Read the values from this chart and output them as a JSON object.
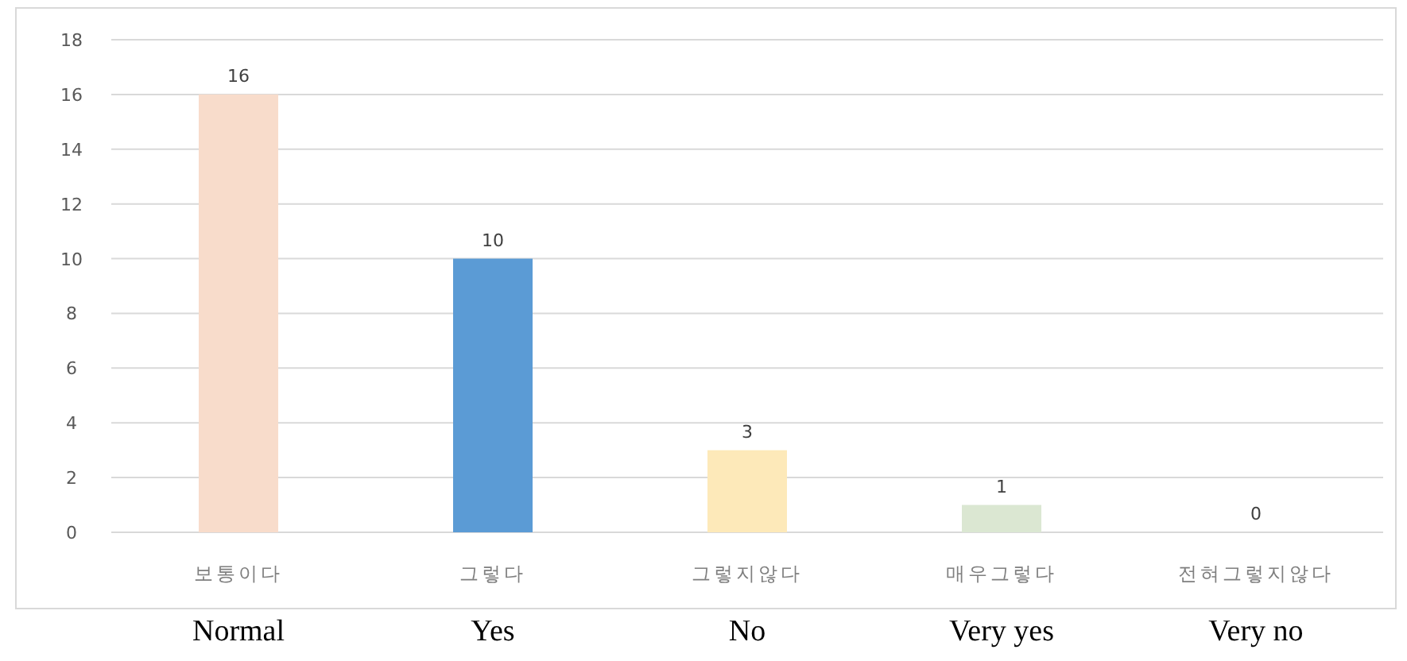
{
  "chart_data": {
    "type": "bar",
    "categories": [
      "보통이다\nNormal",
      "그렇다\nYes",
      "그렇지않다\nNo",
      "매우그렇다\nVery yes",
      "전혀그렇지않다\nVery no"
    ],
    "values": [
      16,
      10,
      3,
      1,
      0
    ],
    "colors": [
      "#f8dccb",
      "#5b9bd5",
      "#fde9b9",
      "#dbe7d2",
      "#d9d9d9"
    ],
    "ylim": [
      0,
      18
    ],
    "yticks": [
      0,
      2,
      4,
      6,
      8,
      10,
      12,
      14,
      16,
      18
    ],
    "grid": "y",
    "data_labels": true
  }
}
